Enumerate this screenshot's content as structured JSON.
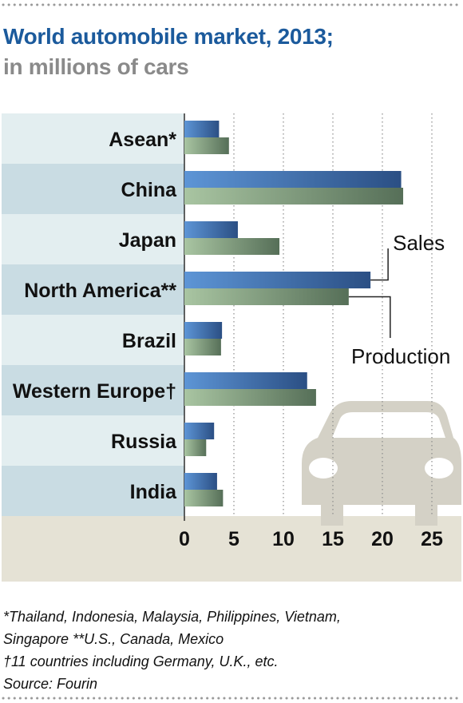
{
  "header": {
    "title": "World automobile market, 2013;",
    "subtitle": "in millions of cars"
  },
  "chart_data": {
    "type": "bar",
    "orientation": "horizontal",
    "categories": [
      "Asean*",
      "China",
      "Japan",
      "North America**",
      "Brazil",
      "Western Europe†",
      "Russia",
      "India"
    ],
    "series": [
      {
        "name": "Sales",
        "values": [
          3.5,
          21.9,
          5.4,
          18.8,
          3.8,
          12.4,
          3.0,
          3.3
        ],
        "color": "#3a6fb5"
      },
      {
        "name": "Production",
        "values": [
          4.5,
          22.1,
          9.6,
          16.6,
          3.7,
          13.3,
          2.2,
          3.9
        ],
        "color": "#6f9070"
      }
    ],
    "xticks": [
      "0",
      "5",
      "10",
      "15",
      "20",
      "25"
    ],
    "xlim": [
      0,
      27
    ],
    "grid": "vertical dotted",
    "legend": "annotations at right, next to North America bars"
  },
  "footnotes": {
    "line1": "*Thailand, Indonesia, Malaysia, Philippines, Vietnam,",
    "line2": "Singapore   **U.S., Canada, Mexico",
    "line3": "†11 countries including Germany, U.K., etc.",
    "line4": "Source: Fourin"
  },
  "colors": {
    "title": "#1b5a9c",
    "subtitle": "#8a8a8a",
    "row_light": "#e3eef0",
    "row_dark": "#c9dce3",
    "axis_band": "#e5e2d5",
    "car_silhouette": "#d4d1c6"
  },
  "icons": {
    "car": "car-icon"
  }
}
